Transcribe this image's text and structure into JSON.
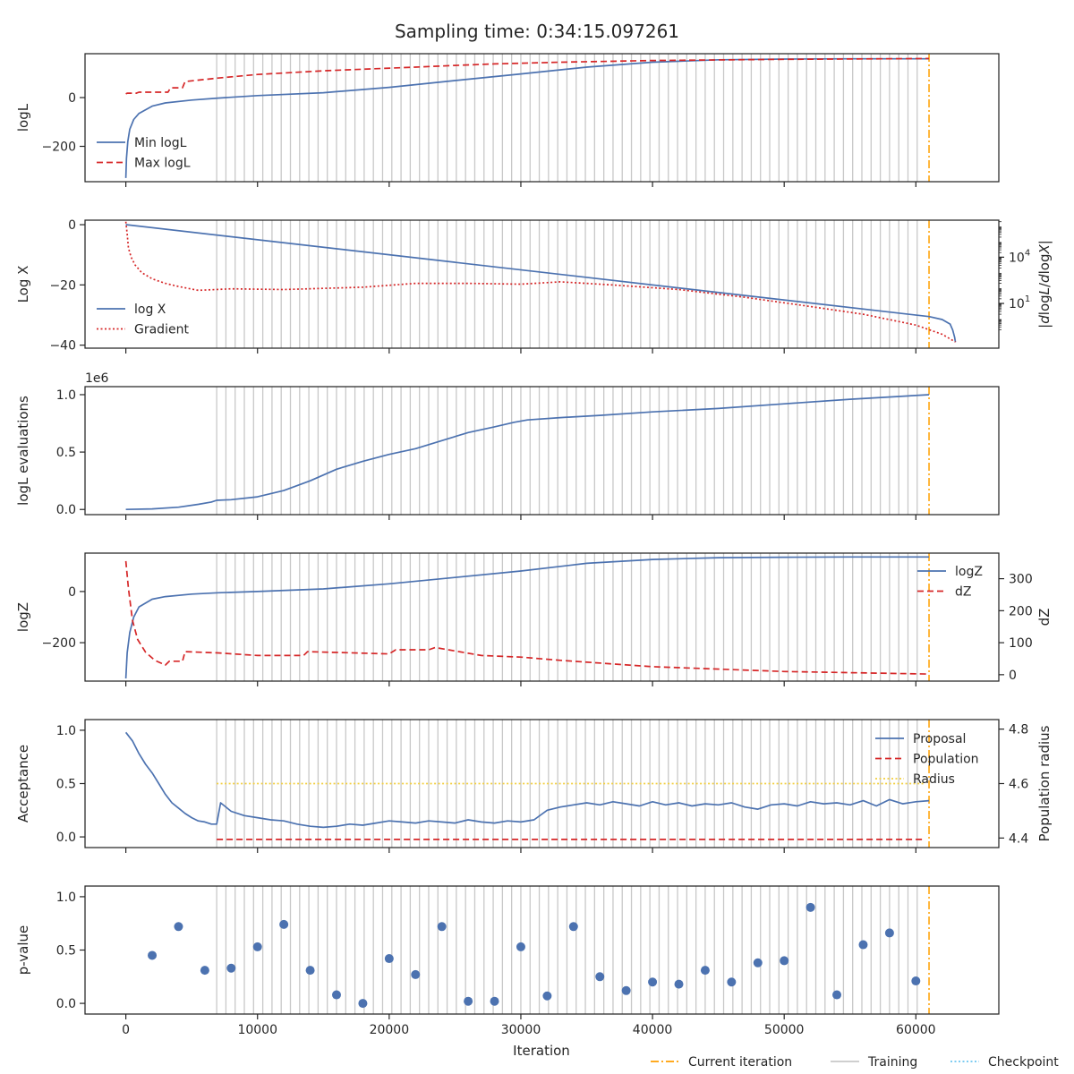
{
  "title": "Sampling time: 0:34:15.097261",
  "xlabel": "Iteration",
  "x_ticks": [
    "0",
    "10000",
    "20000",
    "30000",
    "40000",
    "50000",
    "60000"
  ],
  "x_tick_values": [
    0,
    10000,
    20000,
    30000,
    40000,
    50000,
    60000
  ],
  "xlim": [
    -3100,
    66300
  ],
  "current_iteration": 61000,
  "training_iterations": {
    "start": 6900,
    "step": 700,
    "end": 60600
  },
  "colors": {
    "blue": "#4c72b0",
    "red": "#d62728",
    "orange": "#ff9f00",
    "training": "#c8c8c8",
    "checkpoint": "#6cc5f0",
    "radius": "#f2cf41"
  },
  "bottom_legend": [
    {
      "label": "Current iteration",
      "style": "dashdot",
      "color": "#ff9f00"
    },
    {
      "label": "Training",
      "style": "solid",
      "color": "#c8c8c8"
    },
    {
      "label": "Checkpoint",
      "style": "dotted",
      "color": "#6cc5f0"
    }
  ],
  "chart_data": [
    {
      "id": "logl",
      "type": "line",
      "ylabel": "logL",
      "ylim": [
        -345,
        180
      ],
      "y_ticks": [
        {
          "v": 0,
          "t": "0"
        },
        {
          "v": -200,
          "t": "−200"
        }
      ],
      "legend": [
        "Min logL",
        "Max logL"
      ],
      "series": [
        {
          "name": "Min logL",
          "style": "solid",
          "color": "#4c72b0",
          "x": [
            0,
            50,
            150,
            300,
            600,
            1000,
            2000,
            3000,
            5000,
            7000,
            10000,
            15000,
            20000,
            25000,
            30000,
            35000,
            40000,
            45000,
            50000,
            55000,
            60000,
            61000
          ],
          "y": [
            -330,
            -250,
            -180,
            -130,
            -90,
            -65,
            -35,
            -22,
            -10,
            -2,
            8,
            20,
            42,
            70,
            97,
            125,
            145,
            155,
            158,
            159,
            159,
            159
          ]
        },
        {
          "name": "Max logL",
          "style": "dashed",
          "color": "#d62728",
          "x": [
            0,
            100,
            800,
            1000,
            3200,
            3400,
            4300,
            4500,
            7000,
            10000,
            15000,
            22000,
            25000,
            28000,
            33000,
            40000,
            50000,
            61000
          ],
          "y": [
            15,
            18,
            18,
            22,
            22,
            40,
            40,
            66,
            80,
            95,
            110,
            125,
            132,
            138,
            145,
            152,
            157,
            160
          ]
        }
      ]
    },
    {
      "id": "logx",
      "type": "line",
      "ylabel": "Log X",
      "ylabel_right": "|dlogL/dlogX|",
      "ylim": [
        -41,
        1.5
      ],
      "y_ticks": [
        {
          "v": 0,
          "t": "0"
        },
        {
          "v": -20,
          "t": "−20"
        },
        {
          "v": -40,
          "t": "−40"
        }
      ],
      "right_log_range": [
        -1.9,
        6.4
      ],
      "right_ticks": [
        {
          "exp": 4,
          "base": "10",
          "sup": "4"
        },
        {
          "exp": 1,
          "base": "10",
          "sup": "1"
        }
      ],
      "legend": [
        "log X",
        "Gradient"
      ],
      "series": [
        {
          "name": "log X",
          "style": "solid",
          "color": "#4c72b0",
          "x": [
            0,
            61000,
            62000,
            62600,
            62800,
            62950,
            63000
          ],
          "y": [
            0,
            -30.5,
            -31.5,
            -33,
            -35,
            -37.5,
            -39
          ]
        },
        {
          "name": "Gradient",
          "style": "dotted",
          "color": "#d62728",
          "log_y": true,
          "x": [
            0,
            100,
            200,
            400,
            700,
            1200,
            2000,
            3000,
            4000,
            5500,
            8000,
            12000,
            18000,
            22000,
            26000,
            30000,
            33000,
            37000,
            42000,
            47000,
            52000,
            56000,
            60000,
            62000,
            63000
          ],
          "y": [
            6.3,
            5.5,
            4.6,
            4.0,
            3.5,
            3.0,
            2.6,
            2.3,
            2.1,
            1.85,
            1.95,
            1.9,
            2.05,
            2.3,
            2.3,
            2.25,
            2.4,
            2.2,
            1.9,
            1.4,
            0.8,
            0.3,
            -0.4,
            -1.0,
            -1.5
          ]
        }
      ]
    },
    {
      "id": "evals",
      "type": "line",
      "ylabel": "logL evaluations",
      "offset_text": "1e6",
      "ylim": [
        -0.045,
        1.07
      ],
      "y_ticks": [
        {
          "v": 0,
          "t": "0.0"
        },
        {
          "v": 0.5,
          "t": "0.5"
        },
        {
          "v": 1.0,
          "t": "1.0"
        }
      ],
      "series": [
        {
          "name": "logL evaluations",
          "style": "solid",
          "color": "#4c72b0",
          "x": [
            0,
            2000,
            4000,
            5500,
            6500,
            6900,
            8000,
            10000,
            12000,
            14000,
            16000,
            18000,
            20000,
            22000,
            24000,
            26000,
            28000,
            29500,
            30500,
            33000,
            36000,
            40000,
            45000,
            50000,
            55000,
            61000
          ],
          "y": [
            0,
            0.005,
            0.02,
            0.045,
            0.065,
            0.08,
            0.085,
            0.11,
            0.165,
            0.25,
            0.35,
            0.42,
            0.48,
            0.53,
            0.6,
            0.67,
            0.72,
            0.76,
            0.78,
            0.8,
            0.82,
            0.85,
            0.88,
            0.92,
            0.96,
            1.0
          ]
        }
      ]
    },
    {
      "id": "logz",
      "type": "line",
      "ylabel": "logZ",
      "ylabel_right": "dZ",
      "ylim": [
        -350,
        150
      ],
      "y_ticks": [
        {
          "v": 0,
          "t": "0"
        },
        {
          "v": -200,
          "t": "−200"
        }
      ],
      "right_lim": [
        -20,
        380
      ],
      "right_ticks": [
        {
          "v": 300,
          "t": "300"
        },
        {
          "v": 200,
          "t": "200"
        },
        {
          "v": 100,
          "t": "100"
        },
        {
          "v": 0,
          "t": "0"
        }
      ],
      "legend": [
        "logZ",
        "dZ"
      ],
      "series": [
        {
          "name": "logZ",
          "style": "solid",
          "color": "#4c72b0",
          "x": [
            0,
            100,
            300,
            600,
            1000,
            2000,
            3000,
            5000,
            7000,
            10000,
            15000,
            20000,
            25000,
            30000,
            35000,
            40000,
            45000,
            50000,
            55000,
            61000
          ],
          "y": [
            -340,
            -240,
            -160,
            -100,
            -60,
            -30,
            -20,
            -10,
            -5,
            0,
            10,
            30,
            55,
            80,
            110,
            125,
            132,
            134,
            135,
            135
          ]
        },
        {
          "name": "dZ",
          "style": "dashed",
          "color": "#d62728",
          "right_axis": true,
          "x": [
            0,
            200,
            500,
            900,
            1500,
            2200,
            3000,
            3300,
            4300,
            4500,
            7000,
            10000,
            13500,
            13800,
            20000,
            20500,
            23000,
            23500,
            27000,
            30000,
            33000,
            40000,
            50000,
            61000
          ],
          "y": [
            355,
            270,
            170,
            110,
            70,
            45,
            30,
            42,
            42,
            72,
            68,
            60,
            60,
            72,
            65,
            78,
            78,
            85,
            60,
            55,
            45,
            25,
            10,
            2
          ]
        }
      ]
    },
    {
      "id": "acceptance",
      "type": "line",
      "ylabel": "Acceptance",
      "ylabel_right": "Population radius",
      "ylim": [
        -0.1,
        1.1
      ],
      "y_ticks": [
        {
          "v": 0,
          "t": "0.0"
        },
        {
          "v": 0.5,
          "t": "0.5"
        },
        {
          "v": 1.0,
          "t": "1.0"
        }
      ],
      "right_lim": [
        4.365,
        4.835
      ],
      "right_ticks": [
        {
          "v": 4.8,
          "t": "4.8"
        },
        {
          "v": 4.6,
          "t": "4.6"
        },
        {
          "v": 4.4,
          "t": "4.4"
        }
      ],
      "legend": [
        "Proposal",
        "Population",
        "Radius"
      ],
      "series": [
        {
          "name": "Proposal",
          "style": "solid",
          "color": "#4c72b0",
          "x": [
            0,
            500,
            1000,
            1500,
            2000,
            2500,
            3000,
            3500,
            4000,
            4500,
            5000,
            5500,
            6000,
            6500,
            6900,
            7200,
            8000,
            9000,
            10000,
            11000,
            12000,
            13000,
            14000,
            15000,
            16000,
            17000,
            18000,
            19000,
            20000,
            21000,
            22000,
            23000,
            24000,
            25000,
            26000,
            27000,
            28000,
            29000,
            30000,
            31000,
            32000,
            33000,
            34000,
            35000,
            36000,
            37000,
            38000,
            39000,
            40000,
            41000,
            42000,
            43000,
            44000,
            45000,
            46000,
            47000,
            48000,
            49000,
            50000,
            51000,
            52000,
            53000,
            54000,
            55000,
            56000,
            57000,
            58000,
            59000,
            60000,
            61000
          ],
          "y": [
            0.98,
            0.9,
            0.78,
            0.68,
            0.6,
            0.5,
            0.4,
            0.32,
            0.27,
            0.22,
            0.18,
            0.15,
            0.14,
            0.12,
            0.12,
            0.32,
            0.24,
            0.2,
            0.18,
            0.16,
            0.15,
            0.12,
            0.1,
            0.09,
            0.1,
            0.12,
            0.11,
            0.13,
            0.15,
            0.14,
            0.13,
            0.15,
            0.14,
            0.13,
            0.16,
            0.14,
            0.13,
            0.15,
            0.14,
            0.16,
            0.25,
            0.28,
            0.3,
            0.32,
            0.3,
            0.33,
            0.31,
            0.29,
            0.33,
            0.3,
            0.32,
            0.29,
            0.31,
            0.3,
            0.32,
            0.28,
            0.26,
            0.3,
            0.31,
            0.29,
            0.33,
            0.31,
            0.32,
            0.3,
            0.34,
            0.29,
            0.35,
            0.31,
            0.33,
            0.34
          ]
        },
        {
          "name": "Population",
          "style": "dashed",
          "color": "#d62728",
          "right_axis": true,
          "x": [
            6900,
            60600
          ],
          "y": [
            4.395,
            4.395
          ]
        },
        {
          "name": "Radius",
          "style": "dotted",
          "color": "#f2cf41",
          "x": [
            6900,
            60600
          ],
          "y": [
            0.5,
            0.5
          ]
        }
      ]
    },
    {
      "id": "pvalue",
      "type": "scatter",
      "ylabel": "p-value",
      "ylim": [
        -0.1,
        1.1
      ],
      "y_ticks": [
        {
          "v": 0,
          "t": "0.0"
        },
        {
          "v": 0.5,
          "t": "0.5"
        },
        {
          "v": 1.0,
          "t": "1.0"
        }
      ],
      "series": [
        {
          "name": "p-value",
          "color": "#4c72b0",
          "x": [
            2000,
            4000,
            6000,
            8000,
            10000,
            12000,
            14000,
            16000,
            18000,
            20000,
            22000,
            24000,
            26000,
            28000,
            30000,
            32000,
            34000,
            36000,
            38000,
            40000,
            42000,
            44000,
            46000,
            48000,
            50000,
            52000,
            54000,
            56000,
            58000,
            60000
          ],
          "y": [
            0.45,
            0.72,
            0.31,
            0.33,
            0.53,
            0.74,
            0.31,
            0.08,
            0.0,
            0.42,
            0.27,
            0.72,
            0.02,
            0.02,
            0.53,
            0.07,
            0.72,
            0.25,
            0.12,
            0.2,
            0.18,
            0.31,
            0.2,
            0.38,
            0.4,
            0.9,
            0.08,
            0.55,
            0.66,
            0.21
          ]
        }
      ]
    }
  ]
}
